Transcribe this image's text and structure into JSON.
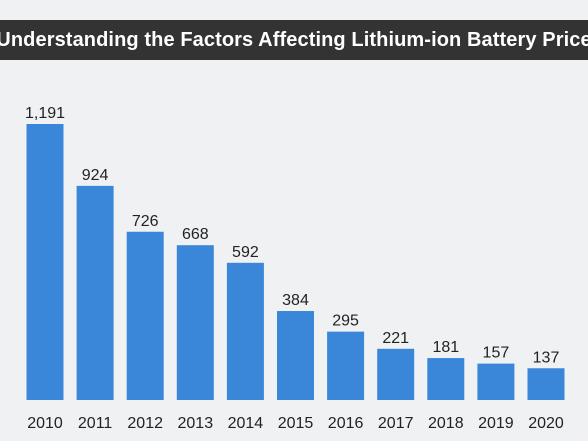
{
  "header": {
    "title": "Understanding the Factors Affecting Lithium-ion Battery Price"
  },
  "colors": {
    "bar": "#3a87d9",
    "title_bg": "#333333",
    "background": "#f0f1f3"
  },
  "chart_data": {
    "type": "bar",
    "title": "Understanding the Factors Affecting Lithium-ion Battery Price",
    "categories": [
      "2010",
      "2011",
      "2012",
      "2013",
      "2014",
      "2015",
      "2016",
      "2017",
      "2018",
      "2019",
      "2020"
    ],
    "values": [
      1191,
      924,
      726,
      668,
      592,
      384,
      295,
      221,
      181,
      157,
      137
    ],
    "value_labels": [
      "1,191",
      "924",
      "726",
      "668",
      "592",
      "384",
      "295",
      "221",
      "181",
      "157",
      "137"
    ],
    "ylim": [
      0,
      1191
    ],
    "grid": false,
    "legend": "none"
  }
}
